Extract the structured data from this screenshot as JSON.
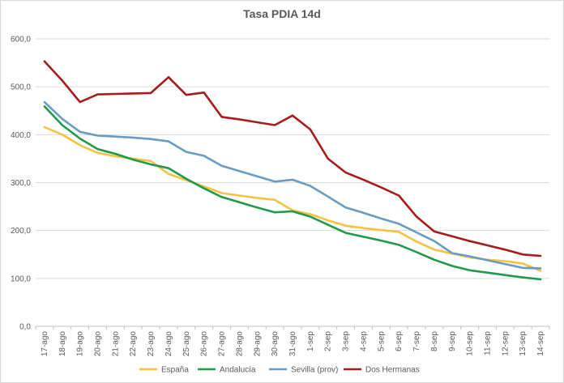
{
  "chart_data": {
    "type": "line",
    "title": "Tasa PDIA 14d",
    "xlabel": "",
    "ylabel": "",
    "ylim": [
      0,
      600
    ],
    "yticks": [
      "0,0",
      "100,0",
      "200,0",
      "300,0",
      "400,0",
      "500,0",
      "600,0"
    ],
    "grid": true,
    "legend_position": "bottom",
    "categories": [
      "17-ago",
      "18-ago",
      "19-ago",
      "20-ago",
      "21-ago",
      "22-ago",
      "23-ago",
      "24-ago",
      "25-ago",
      "26-ago",
      "27-ago",
      "28-ago",
      "29-ago",
      "30-ago",
      "31-ago",
      "1-sep",
      "2-sep",
      "3-sep",
      "4-sep",
      "5-sep",
      "6-sep",
      "7-sep",
      "8-sep",
      "9-sep",
      "10-sep",
      "11-sep",
      "12-sep",
      "13-sep",
      "14-sep"
    ],
    "series": [
      {
        "name": "España",
        "color": "#f5c242",
        "values": [
          416,
          400,
          378,
          362,
          355,
          350,
          345,
          318,
          305,
          292,
          278,
          273,
          268,
          264,
          242,
          234,
          221,
          210,
          205,
          201,
          197,
          177,
          160,
          152,
          144,
          139,
          136,
          131,
          116
        ]
      },
      {
        "name": "Andalucía",
        "color": "#1e9a4a",
        "values": [
          459,
          420,
          392,
          370,
          360,
          348,
          338,
          330,
          308,
          288,
          270,
          259,
          248,
          238,
          240,
          229,
          212,
          195,
          187,
          179,
          170,
          155,
          139,
          126,
          117,
          112,
          107,
          102,
          98
        ]
      },
      {
        "name": "Sevilla (prov)",
        "color": "#6a9bc3",
        "values": [
          468,
          433,
          406,
          398,
          396,
          394,
          391,
          386,
          364,
          356,
          335,
          324,
          313,
          302,
          306,
          293,
          271,
          248,
          237,
          225,
          214,
          196,
          178,
          153,
          146,
          138,
          130,
          122,
          121
        ]
      },
      {
        "name": "Dos Hermanas",
        "color": "#a61c1c",
        "values": [
          553,
          513,
          468,
          484,
          485,
          486,
          487,
          520,
          483,
          488,
          437,
          432,
          426,
          420,
          440,
          411,
          350,
          321,
          306,
          290,
          273,
          229,
          198,
          188,
          178,
          169,
          160,
          150,
          147
        ]
      }
    ]
  }
}
